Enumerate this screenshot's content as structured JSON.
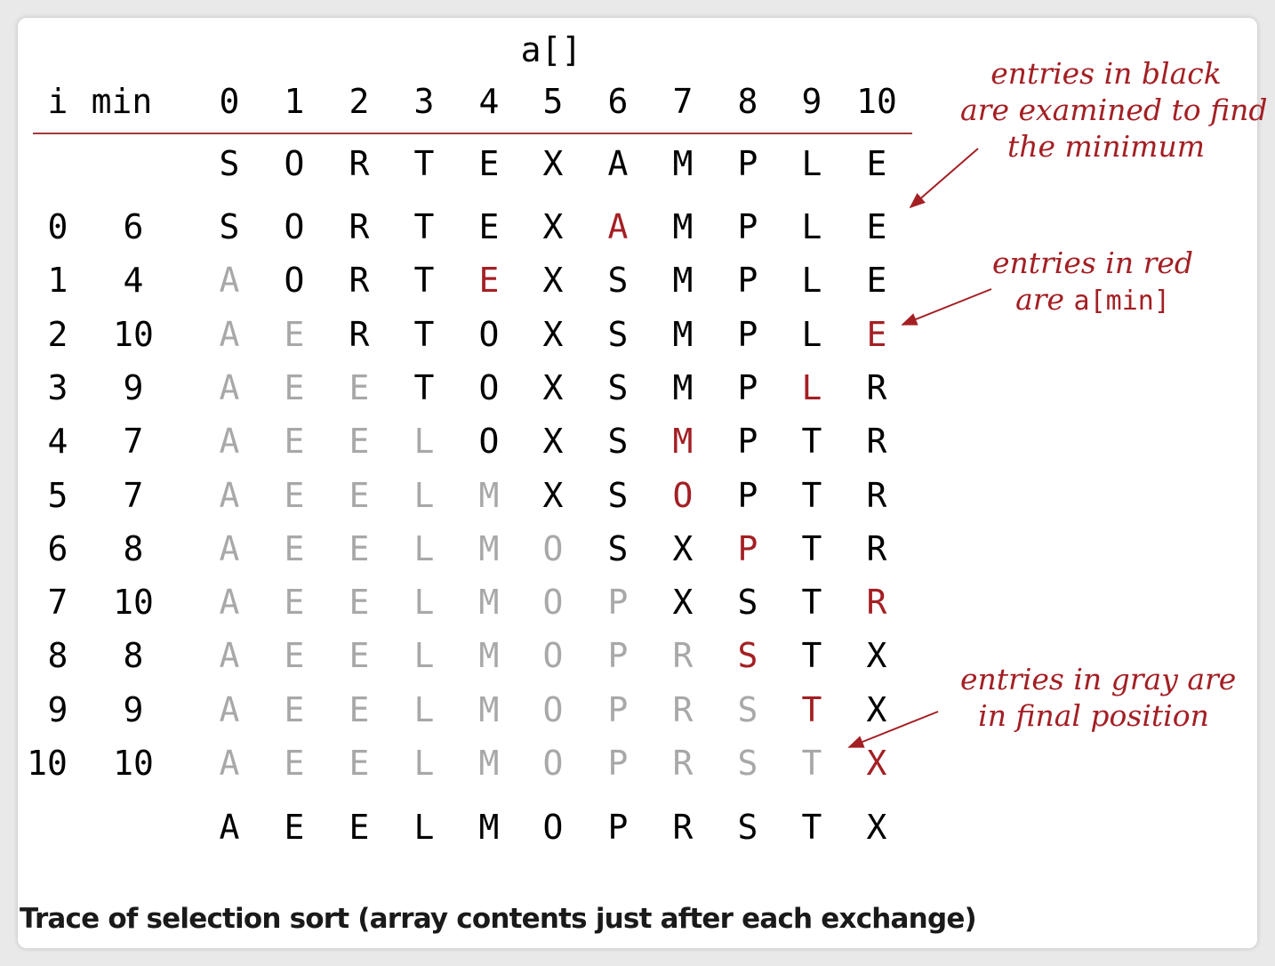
{
  "header": {
    "array_label": "a[]",
    "i_label": "i",
    "min_label": "min",
    "indices": [
      "0",
      "1",
      "2",
      "3",
      "4",
      "5",
      "6",
      "7",
      "8",
      "9",
      "10"
    ]
  },
  "colors": {
    "black": "#000000",
    "red": "#a31f24",
    "gray": "#a8a8a8",
    "rule": "#a33a3a"
  },
  "initial_row": [
    "S",
    "O",
    "R",
    "T",
    "E",
    "X",
    "A",
    "M",
    "P",
    "L",
    "E"
  ],
  "trace_rows": [
    {
      "i": "0",
      "min": "6",
      "cells": [
        "S",
        "O",
        "R",
        "T",
        "E",
        "X",
        "A",
        "M",
        "P",
        "L",
        "E"
      ],
      "states": [
        "b",
        "b",
        "b",
        "b",
        "b",
        "b",
        "r",
        "b",
        "b",
        "b",
        "b"
      ]
    },
    {
      "i": "1",
      "min": "4",
      "cells": [
        "A",
        "O",
        "R",
        "T",
        "E",
        "X",
        "S",
        "M",
        "P",
        "L",
        "E"
      ],
      "states": [
        "g",
        "b",
        "b",
        "b",
        "r",
        "b",
        "b",
        "b",
        "b",
        "b",
        "b"
      ]
    },
    {
      "i": "2",
      "min": "10",
      "cells": [
        "A",
        "E",
        "R",
        "T",
        "O",
        "X",
        "S",
        "M",
        "P",
        "L",
        "E"
      ],
      "states": [
        "g",
        "g",
        "b",
        "b",
        "b",
        "b",
        "b",
        "b",
        "b",
        "b",
        "r"
      ]
    },
    {
      "i": "3",
      "min": "9",
      "cells": [
        "A",
        "E",
        "E",
        "T",
        "O",
        "X",
        "S",
        "M",
        "P",
        "L",
        "R"
      ],
      "states": [
        "g",
        "g",
        "g",
        "b",
        "b",
        "b",
        "b",
        "b",
        "b",
        "r",
        "b"
      ]
    },
    {
      "i": "4",
      "min": "7",
      "cells": [
        "A",
        "E",
        "E",
        "L",
        "O",
        "X",
        "S",
        "M",
        "P",
        "T",
        "R"
      ],
      "states": [
        "g",
        "g",
        "g",
        "g",
        "b",
        "b",
        "b",
        "r",
        "b",
        "b",
        "b"
      ]
    },
    {
      "i": "5",
      "min": "7",
      "cells": [
        "A",
        "E",
        "E",
        "L",
        "M",
        "X",
        "S",
        "O",
        "P",
        "T",
        "R"
      ],
      "states": [
        "g",
        "g",
        "g",
        "g",
        "g",
        "b",
        "b",
        "r",
        "b",
        "b",
        "b"
      ]
    },
    {
      "i": "6",
      "min": "8",
      "cells": [
        "A",
        "E",
        "E",
        "L",
        "M",
        "O",
        "S",
        "X",
        "P",
        "T",
        "R"
      ],
      "states": [
        "g",
        "g",
        "g",
        "g",
        "g",
        "g",
        "b",
        "b",
        "r",
        "b",
        "b"
      ]
    },
    {
      "i": "7",
      "min": "10",
      "cells": [
        "A",
        "E",
        "E",
        "L",
        "M",
        "O",
        "P",
        "X",
        "S",
        "T",
        "R"
      ],
      "states": [
        "g",
        "g",
        "g",
        "g",
        "g",
        "g",
        "g",
        "b",
        "b",
        "b",
        "r"
      ]
    },
    {
      "i": "8",
      "min": "8",
      "cells": [
        "A",
        "E",
        "E",
        "L",
        "M",
        "O",
        "P",
        "R",
        "S",
        "T",
        "X"
      ],
      "states": [
        "g",
        "g",
        "g",
        "g",
        "g",
        "g",
        "g",
        "g",
        "r",
        "b",
        "b"
      ]
    },
    {
      "i": "9",
      "min": "9",
      "cells": [
        "A",
        "E",
        "E",
        "L",
        "M",
        "O",
        "P",
        "R",
        "S",
        "T",
        "X"
      ],
      "states": [
        "g",
        "g",
        "g",
        "g",
        "g",
        "g",
        "g",
        "g",
        "g",
        "r",
        "b"
      ]
    },
    {
      "i": "10",
      "min": "10",
      "cells": [
        "A",
        "E",
        "E",
        "L",
        "M",
        "O",
        "P",
        "R",
        "S",
        "T",
        "X"
      ],
      "states": [
        "g",
        "g",
        "g",
        "g",
        "g",
        "g",
        "g",
        "g",
        "g",
        "g",
        "r"
      ]
    }
  ],
  "final_row": [
    "A",
    "E",
    "E",
    "L",
    "M",
    "O",
    "P",
    "R",
    "S",
    "T",
    "X"
  ],
  "annotations": {
    "black": {
      "line1": "entries in black",
      "line2": "are examined to find",
      "line3": "the minimum"
    },
    "red": {
      "line1": "entries in red",
      "line2_prefix": "are ",
      "line2_code": "a[min]"
    },
    "gray": {
      "line1": "entries in gray are",
      "line2": "in final position"
    }
  },
  "caption": "Trace of selection sort (array contents just after each exchange)"
}
